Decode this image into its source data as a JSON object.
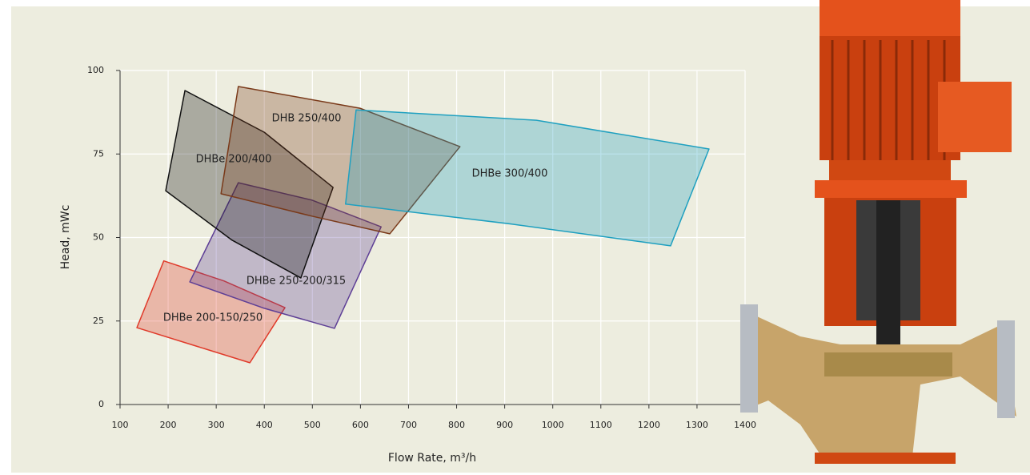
{
  "chart_data": {
    "type": "region",
    "xlabel": "Flow Rate, m³/h",
    "ylabel": "Head, mWc",
    "xlim": [
      100,
      1400
    ],
    "ylim": [
      0,
      100
    ],
    "xticks": [
      100,
      200,
      300,
      400,
      500,
      600,
      700,
      800,
      900,
      1000,
      1100,
      1200,
      1300,
      1400
    ],
    "yticks": [
      0,
      25,
      50,
      75,
      100
    ],
    "grid": true,
    "series": [
      {
        "name": "DHBe 200-150/250",
        "color": "#e03a2a",
        "x": [
          191,
          316,
          443,
          370,
          258,
          135
        ],
        "y": [
          43,
          37,
          29,
          12.5,
          17.5,
          23
        ]
      },
      {
        "name": "DHBe 250-200/315",
        "color": "#5e3f96",
        "x": [
          346,
          499,
          643,
          546,
          400,
          245
        ],
        "y": [
          66.4,
          61.2,
          53.2,
          22.8,
          28.8,
          36.7
        ]
      },
      {
        "name": "DHBe 200/400",
        "color": "#111111",
        "x": [
          235,
          400,
          543,
          476,
          333,
          195
        ],
        "y": [
          94,
          81.5,
          65,
          37.9,
          49.2,
          64
        ]
      },
      {
        "name": "DHB 250/400",
        "color": "#7a3a1a",
        "x": [
          346,
          599,
          807,
          661,
          499,
          310
        ],
        "y": [
          95.2,
          88.7,
          77.2,
          51.1,
          56.4,
          63.1
        ]
      },
      {
        "name": "DHBe 300/400",
        "color": "#1fa0c0",
        "x": [
          591,
          966,
          1325,
          1245,
          916,
          569
        ],
        "y": [
          88.2,
          85.1,
          76.5,
          47.5,
          54,
          60
        ]
      }
    ]
  }
}
